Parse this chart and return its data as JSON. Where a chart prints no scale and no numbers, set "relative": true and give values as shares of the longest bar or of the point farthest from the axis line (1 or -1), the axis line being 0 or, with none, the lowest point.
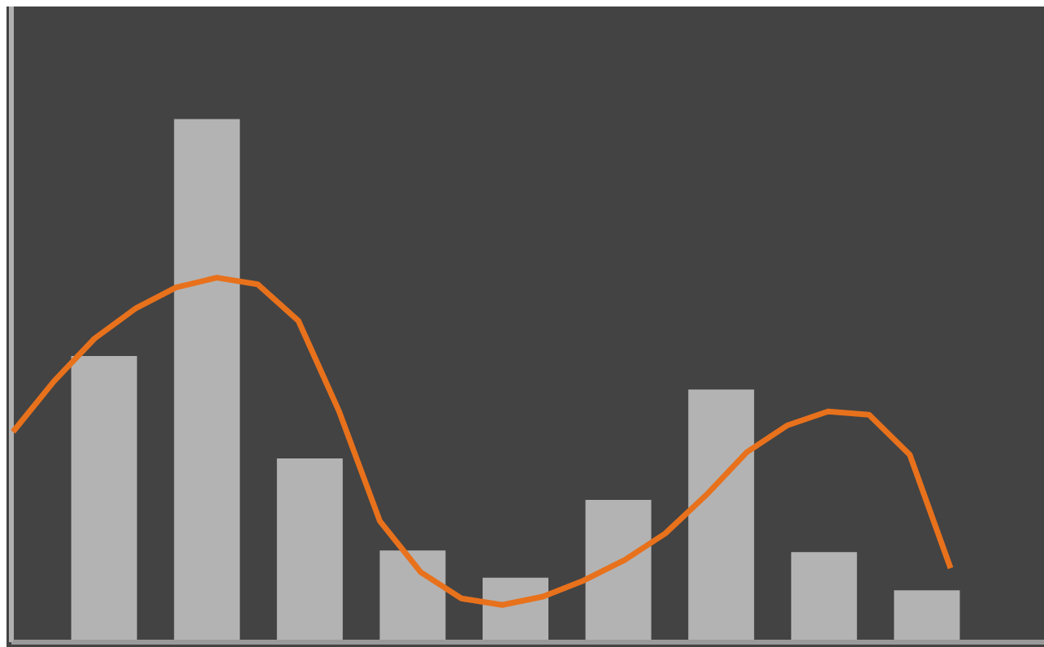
{
  "chart_data": [
    {
      "type": "bar",
      "relative": true,
      "categories": [
        null,
        null,
        null,
        null,
        null,
        null,
        null,
        null,
        null
      ],
      "values": [
        0.547,
        1,
        0.351,
        0.175,
        0.123,
        0.272,
        0.483,
        0.172,
        0.099
      ],
      "color": "#b3b3b3"
    },
    {
      "type": "line",
      "relative": true,
      "categories": [
        null,
        null,
        null,
        null,
        null,
        null,
        null,
        null,
        null,
        null,
        null,
        null,
        null,
        null,
        null,
        null,
        null,
        null,
        null,
        null,
        null,
        null,
        null,
        null
      ],
      "values": [
        0.577,
        0.715,
        0.833,
        0.915,
        0.973,
        1,
        0.982,
        0.882,
        0.633,
        0.332,
        0.192,
        0.12,
        0.102,
        0.125,
        0.169,
        0.225,
        0.298,
        0.403,
        0.521,
        0.595,
        0.633,
        0.624,
        0.514,
        0.203
      ],
      "color": "#e8711c"
    }
  ]
}
